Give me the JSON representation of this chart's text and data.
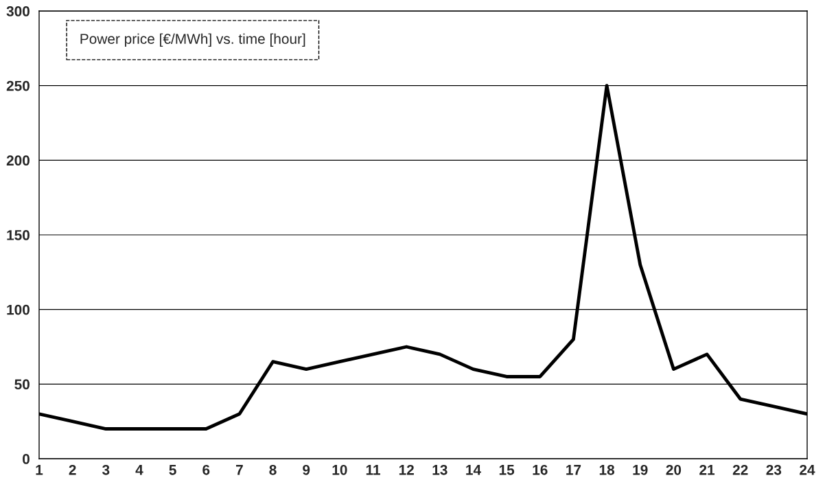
{
  "chart_data": {
    "type": "line",
    "title": "Power price [€/MWh] vs. time [hour]",
    "x": [
      1,
      2,
      3,
      4,
      5,
      6,
      7,
      8,
      9,
      10,
      11,
      12,
      13,
      14,
      15,
      16,
      17,
      18,
      19,
      20,
      21,
      22,
      23,
      24
    ],
    "series": [
      {
        "color": "#000000",
        "values": [
          30,
          25,
          20,
          20,
          20,
          20,
          30,
          65,
          60,
          65,
          70,
          75,
          70,
          60,
          55,
          55,
          80,
          250,
          130,
          60,
          70,
          40,
          35,
          30
        ]
      }
    ],
    "xlim": [
      1,
      24
    ],
    "xticks": [
      1,
      2,
      3,
      4,
      5,
      6,
      7,
      8,
      9,
      10,
      11,
      12,
      13,
      14,
      15,
      16,
      17,
      18,
      19,
      20,
      21,
      22,
      23,
      24
    ],
    "ylim": [
      0,
      300
    ],
    "yticks": [
      0,
      50,
      100,
      150,
      200,
      250,
      300
    ],
    "grid": "y",
    "marker": "none",
    "line_style": "solid"
  }
}
